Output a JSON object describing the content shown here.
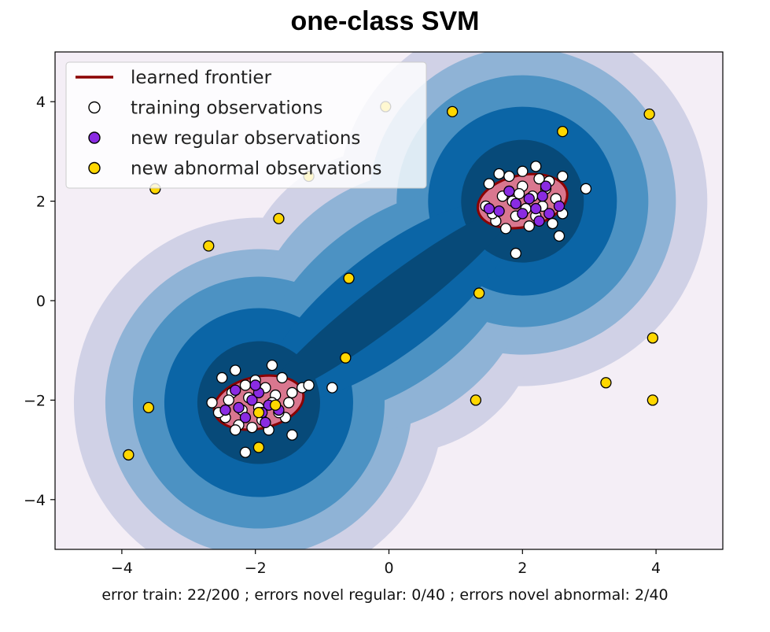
{
  "chart_data": {
    "type": "scatter",
    "title": "one-class SVM",
    "xlabel": "error train: 22/200 ; errors novel regular: 0/40 ; errors novel abnormal: 2/40",
    "ylabel": "",
    "xlim": [
      -5,
      5
    ],
    "ylim": [
      -5,
      5
    ],
    "xticks": [
      -4,
      -2,
      0,
      2,
      4
    ],
    "yticks": [
      -4,
      -2,
      0,
      2,
      4
    ],
    "grid": false,
    "legend_position": "top-left",
    "colors": {
      "frontier": "#8b0000",
      "frontier_fill": "#d9778f",
      "training": "#ffffff",
      "regular": "#8a2be2",
      "abnormal": "#ffd700",
      "contour_levels": [
        "#f4eef6",
        "#d0d1e6",
        "#8fb3d6",
        "#4c92c3",
        "#0b65a6",
        "#074a79"
      ]
    },
    "legend": [
      {
        "label": "learned frontier",
        "kind": "line",
        "color": "#8b0000"
      },
      {
        "label": "training observations",
        "kind": "marker",
        "color": "#ffffff"
      },
      {
        "label": "new regular observations",
        "kind": "marker",
        "color": "#8a2be2"
      },
      {
        "label": "new abnormal observations",
        "kind": "marker",
        "color": "#ffd700"
      }
    ],
    "clusters": [
      {
        "center": [
          -1.95,
          -2.05
        ],
        "frontier_rx": 0.68,
        "frontier_ry": 0.52
      },
      {
        "center": [
          2.0,
          2.0
        ],
        "frontier_rx": 0.68,
        "frontier_ry": 0.52
      }
    ],
    "series": [
      {
        "name": "training observations",
        "points": [
          [
            -1.3,
            -1.75
          ],
          [
            -1.45,
            -2.7
          ],
          [
            -2.15,
            -3.05
          ],
          [
            -2.5,
            -1.55
          ],
          [
            -2.65,
            -2.05
          ],
          [
            -1.75,
            -1.3
          ],
          [
            -2.45,
            -2.35
          ],
          [
            -1.55,
            -2.35
          ],
          [
            -1.2,
            -1.7
          ],
          [
            -2.3,
            -1.4
          ],
          [
            -2.0,
            -1.6
          ],
          [
            -1.7,
            -1.9
          ],
          [
            -2.2,
            -2.2
          ],
          [
            -1.9,
            -2.4
          ],
          [
            -2.35,
            -1.85
          ],
          [
            -1.6,
            -1.55
          ],
          [
            -2.05,
            -2.55
          ],
          [
            -1.8,
            -2.6
          ],
          [
            -2.25,
            -2.5
          ],
          [
            -1.5,
            -2.05
          ],
          [
            -2.4,
            -2.0
          ],
          [
            -1.85,
            -1.75
          ],
          [
            -2.1,
            -1.95
          ],
          [
            -1.65,
            -2.25
          ],
          [
            -1.95,
            -2.15
          ],
          [
            -2.3,
            -2.6
          ],
          [
            -1.45,
            -1.85
          ],
          [
            -2.15,
            -1.7
          ],
          [
            -2.55,
            -2.25
          ],
          [
            -1.75,
            -2.05
          ],
          [
            -0.85,
            -1.75
          ],
          [
            2.95,
            2.25
          ],
          [
            2.55,
            1.3
          ],
          [
            1.9,
            0.95
          ],
          [
            1.5,
            2.35
          ],
          [
            1.45,
            1.9
          ],
          [
            2.2,
            2.7
          ],
          [
            2.4,
            2.4
          ],
          [
            1.6,
            1.6
          ],
          [
            2.1,
            1.5
          ],
          [
            1.8,
            2.5
          ],
          [
            2.3,
            1.9
          ],
          [
            1.7,
            2.1
          ],
          [
            2.0,
            2.3
          ],
          [
            2.5,
            2.05
          ],
          [
            1.9,
            1.7
          ],
          [
            2.15,
            2.1
          ],
          [
            2.45,
            1.55
          ],
          [
            1.65,
            2.55
          ],
          [
            2.25,
            2.45
          ],
          [
            2.6,
            2.5
          ],
          [
            1.85,
            2.0
          ],
          [
            2.05,
            1.85
          ],
          [
            2.35,
            2.25
          ],
          [
            1.55,
            1.75
          ],
          [
            2.6,
            1.75
          ],
          [
            2.0,
            2.6
          ],
          [
            1.75,
            1.45
          ],
          [
            2.2,
            1.7
          ],
          [
            1.95,
            2.15
          ]
        ]
      },
      {
        "name": "new regular observations",
        "points": [
          [
            -2.45,
            -2.2
          ],
          [
            -2.3,
            -1.8
          ],
          [
            -2.05,
            -2.0
          ],
          [
            -1.95,
            -1.85
          ],
          [
            -1.8,
            -2.1
          ],
          [
            -2.15,
            -2.35
          ],
          [
            -1.65,
            -2.2
          ],
          [
            -1.85,
            -2.45
          ],
          [
            -2.25,
            -2.15
          ],
          [
            -1.9,
            -2.25
          ],
          [
            -2.0,
            -1.7
          ],
          [
            1.5,
            1.85
          ],
          [
            1.65,
            1.8
          ],
          [
            1.8,
            2.2
          ],
          [
            2.0,
            1.75
          ],
          [
            2.2,
            1.85
          ],
          [
            2.35,
            2.3
          ],
          [
            2.4,
            1.75
          ],
          [
            2.55,
            1.9
          ],
          [
            2.1,
            2.05
          ],
          [
            2.3,
            2.1
          ],
          [
            1.9,
            1.95
          ],
          [
            2.25,
            1.6
          ]
        ]
      },
      {
        "name": "new abnormal observations",
        "points": [
          [
            -3.5,
            2.25
          ],
          [
            -1.2,
            2.5
          ],
          [
            -0.05,
            3.9
          ],
          [
            0.95,
            3.8
          ],
          [
            2.6,
            3.4
          ],
          [
            3.9,
            3.75
          ],
          [
            -1.65,
            1.65
          ],
          [
            -2.7,
            1.1
          ],
          [
            -0.6,
            0.45
          ],
          [
            1.35,
            0.15
          ],
          [
            3.95,
            -0.75
          ],
          [
            -0.65,
            -1.15
          ],
          [
            3.25,
            -1.65
          ],
          [
            3.95,
            -2.0
          ],
          [
            1.3,
            -2.0
          ],
          [
            -3.6,
            -2.15
          ],
          [
            -3.9,
            -3.1
          ],
          [
            -1.95,
            -2.95
          ],
          [
            -1.95,
            -2.25
          ],
          [
            -1.7,
            -2.1
          ]
        ]
      }
    ]
  }
}
